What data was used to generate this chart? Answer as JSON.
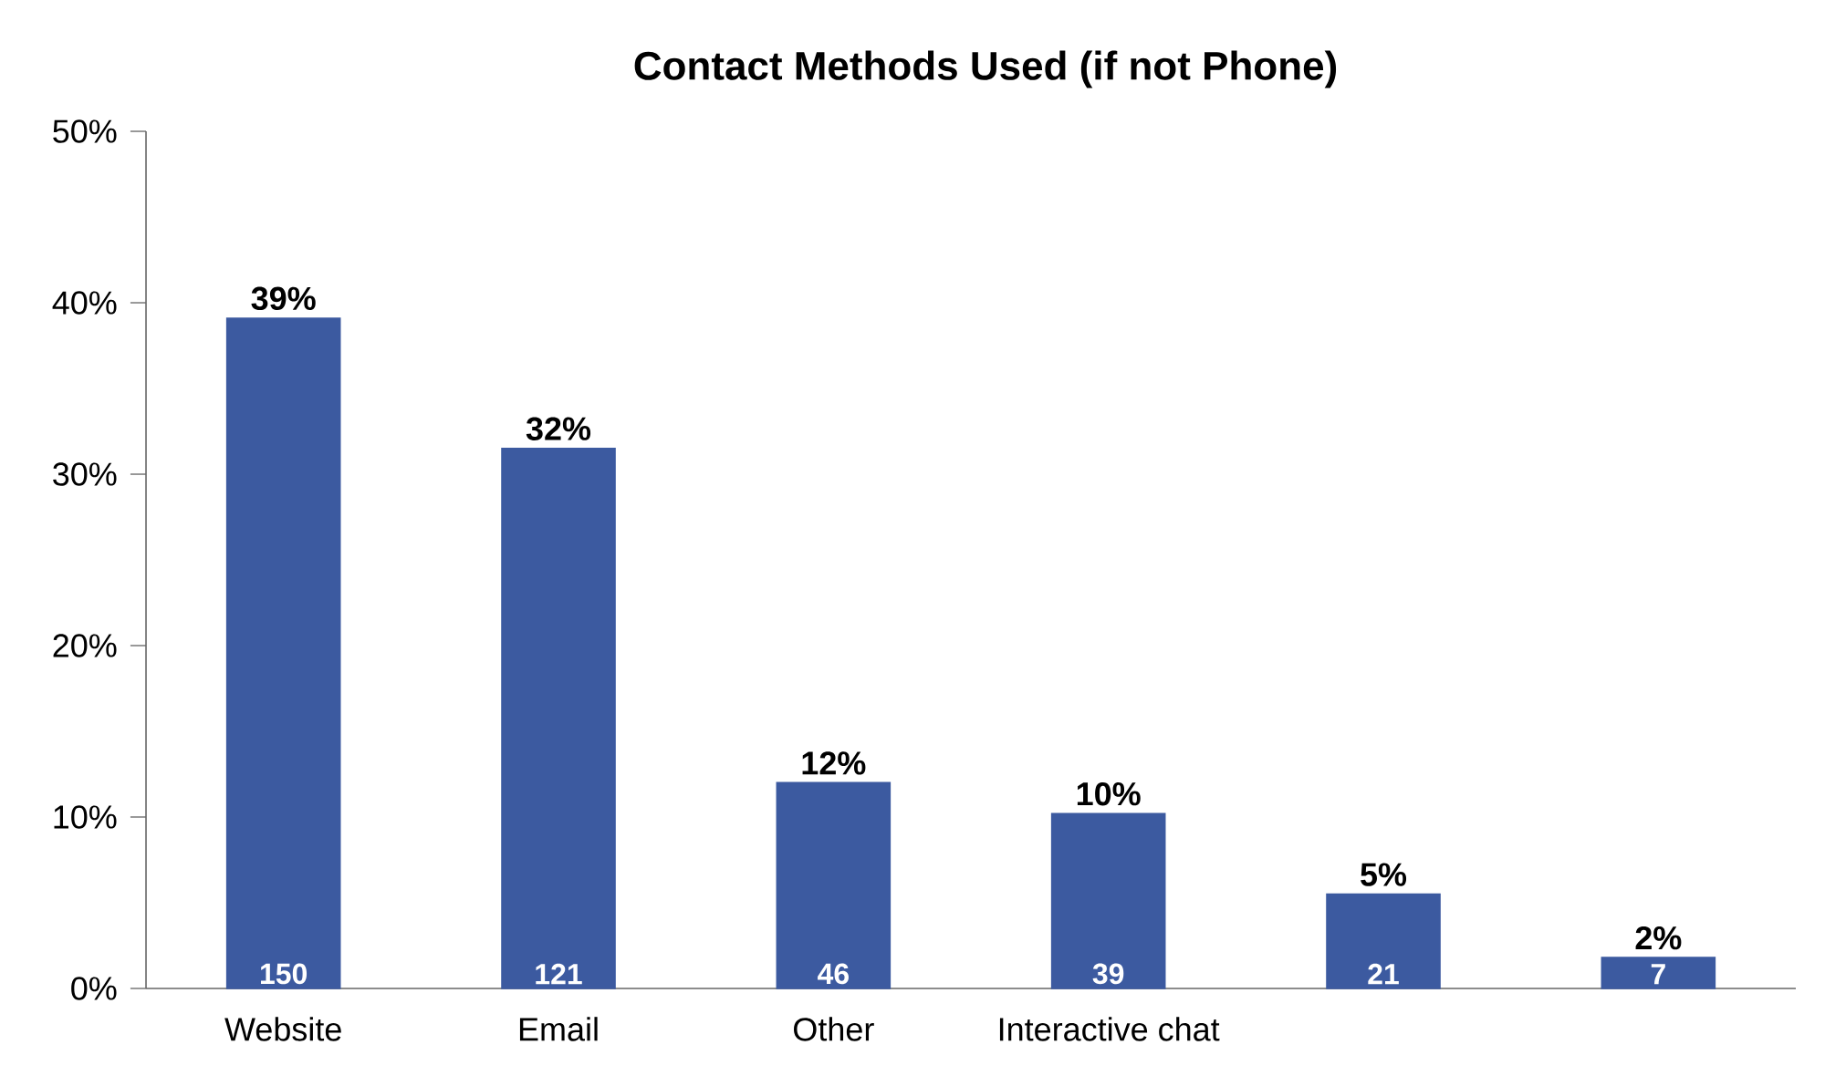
{
  "chart_data": {
    "type": "bar",
    "title": "Contact Methods Used (if not Phone)",
    "categories": [
      "Website",
      "Email",
      "Other",
      "Interactive chat",
      null,
      null
    ],
    "values": [
      39.1,
      31.5,
      12.0,
      10.2,
      5.5,
      1.8
    ],
    "value_labels": [
      "39%",
      "32%",
      "12%",
      "10%",
      "5%",
      "2%"
    ],
    "annotations": [
      "150",
      "121",
      "46",
      "39",
      "21",
      "7"
    ],
    "color": "#3c5aa0",
    "ylim": [
      0,
      50
    ],
    "yticks": [
      {
        "value": 0,
        "label": "0%"
      },
      {
        "value": 10,
        "label": "10%"
      },
      {
        "value": 20,
        "label": "20%"
      },
      {
        "value": 30,
        "label": "30%"
      },
      {
        "value": 40,
        "label": "40%"
      },
      {
        "value": 50,
        "label": "50%"
      }
    ],
    "grid": false
  }
}
